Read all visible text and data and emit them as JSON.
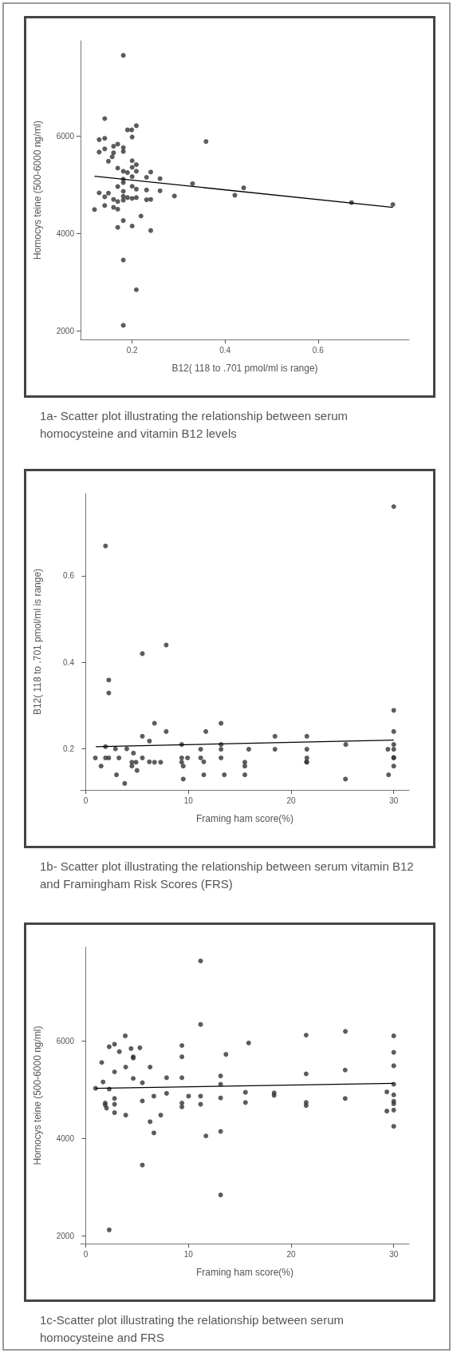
{
  "chart_data": [
    {
      "type": "scatter",
      "title": "1a- Scatter plot illustrating the relationship between serum homocysteine and vitamin B12 levels",
      "xlabel": "B12( 118 to .701 pmol/ml is range)",
      "ylabel": "Homocys teine (500-6000 ng/ml)",
      "xlim": [
        0.089,
        0.796
      ],
      "xticks": [
        0.2,
        0.4,
        0.6
      ],
      "ylim": [
        1830,
        7960
      ],
      "yticks": [
        2000,
        4000,
        6000
      ],
      "marker": "circle",
      "series": [
        {
          "type": "scatter",
          "color": "#333333",
          "x": [
            0.181,
            0.141,
            0.209,
            0.19,
            0.199,
            0.2,
            0.129,
            0.141,
            0.359,
            0.129,
            0.141,
            0.169,
            0.16,
            0.181,
            0.181,
            0.16,
            0.157,
            0.149,
            0.169,
            0.2,
            0.209,
            0.2,
            0.181,
            0.19,
            0.209,
            0.24,
            0.231,
            0.2,
            0.181,
            0.26,
            0.181,
            0.33,
            0.44,
            0.169,
            0.2,
            0.209,
            0.231,
            0.26,
            0.181,
            0.129,
            0.149,
            0.141,
            0.291,
            0.421,
            0.181,
            0.19,
            0.2,
            0.209,
            0.16,
            0.169,
            0.231,
            0.24,
            0.181,
            0.672,
            0.761,
            0.119,
            0.141,
            0.16,
            0.169,
            0.219,
            0.181,
            0.169,
            0.2,
            0.24,
            0.181,
            0.209,
            0.181
          ],
          "values": [
            7660,
            6362,
            6216,
            6130,
            6130,
            5984,
            5930,
            5957,
            5892,
            5676,
            5740,
            5838,
            5795,
            5768,
            5687,
            5660,
            5578,
            5487,
            5346,
            5497,
            5416,
            5362,
            5281,
            5254,
            5281,
            5265,
            5157,
            5173,
            5119,
            5130,
            5049,
            5027,
            4941,
            4968,
            4973,
            4914,
            4897,
            4881,
            4870,
            4838,
            4832,
            4757,
            4773,
            4789,
            4768,
            4741,
            4724,
            4741,
            4703,
            4660,
            4697,
            4703,
            4687,
            4638,
            4600,
            4497,
            4578,
            4541,
            4503,
            4362,
            4270,
            4130,
            4157,
            4065,
            3460,
            2850,
            2120
          ]
        },
        {
          "type": "line",
          "marker": "none",
          "color": "#000000",
          "x": [
            0.119,
            0.761
          ],
          "values": [
            5180,
            4540
          ]
        }
      ]
    },
    {
      "type": "scatter",
      "title": "1b- Scatter plot illustrating the relationship between serum vitamin B12 and Framingham Risk Scores (FRS)",
      "xlabel": "Framing ham score(%)",
      "ylabel": "B12( 118 to .701 pmol/ml is range)",
      "xlim": [
        -0.5,
        31.5
      ],
      "xticks": [
        0,
        10,
        20,
        30
      ],
      "ylim": [
        0.105,
        0.79
      ],
      "yticks": [
        0.2,
        0.4,
        0.6
      ],
      "marker": "circle",
      "series": [
        {
          "type": "scatter",
          "color": "#333333",
          "x": [
            30,
            1.93,
            2.25,
            2.25,
            5.52,
            7.84,
            30,
            6.7,
            13.18,
            5.52,
            11.7,
            7.84,
            6.21,
            18.43,
            21.54,
            30,
            25.33,
            9.35,
            13.18,
            30,
            1.93,
            2.9,
            4,
            11.2,
            13.18,
            15.88,
            18.43,
            21.54,
            29.43,
            30,
            0.94,
            1.93,
            2.25,
            3.24,
            4.65,
            5.52,
            9.35,
            9.92,
            11.2,
            13.18,
            21.54,
            30,
            4.5,
            4.9,
            6.7,
            7.3,
            9.35,
            15.5,
            21.54,
            1.5,
            3,
            3.8,
            4.5,
            5,
            6.2,
            9.5,
            9.5,
            11.5,
            11.5,
            13.5,
            15.5,
            15.5,
            21.5,
            25.3,
            29.5,
            30,
            30
          ],
          "values": [
            0.76,
            0.669,
            0.359,
            0.329,
            0.42,
            0.44,
            0.289,
            0.259,
            0.259,
            0.229,
            0.24,
            0.24,
            0.218,
            0.229,
            0.229,
            0.24,
            0.21,
            0.21,
            0.21,
            0.21,
            0.205,
            0.2,
            0.2,
            0.199,
            0.199,
            0.199,
            0.199,
            0.199,
            0.199,
            0.199,
            0.179,
            0.179,
            0.179,
            0.179,
            0.19,
            0.179,
            0.179,
            0.179,
            0.179,
            0.179,
            0.179,
            0.179,
            0.169,
            0.169,
            0.169,
            0.169,
            0.169,
            0.169,
            0.169,
            0.16,
            0.14,
            0.12,
            0.16,
            0.15,
            0.17,
            0.13,
            0.16,
            0.14,
            0.17,
            0.14,
            0.14,
            0.16,
            0.17,
            0.13,
            0.14,
            0.16,
            0.18
          ]
        },
        {
          "type": "line",
          "marker": "none",
          "color": "#000000",
          "x": [
            0.99,
            30
          ],
          "values": [
            0.205,
            0.22
          ]
        }
      ]
    },
    {
      "type": "scatter",
      "title": "1c-Scatter plot illustrating the relationship between serum homocysteine and FRS",
      "xlabel": "Framing ham score(%)",
      "ylabel": "Homocys teine (500-6000 ng/ml)",
      "xlim": [
        -0.5,
        31.5
      ],
      "xticks": [
        0,
        10,
        20,
        30
      ],
      "ylim": [
        1844,
        7922
      ],
      "yticks": [
        2000,
        4000,
        6000
      ],
      "marker": "circle",
      "series": [
        {
          "type": "scatter",
          "color": "#333333",
          "x": [
            11.19,
            11.19,
            3.85,
            21.47,
            25.29,
            30,
            2.29,
            2.81,
            9.37,
            15.87,
            3.28,
            4.42,
            5.28,
            4.63,
            4.63,
            13.66,
            30,
            1.56,
            9.37,
            30,
            3.9,
            6.27,
            25.27,
            2.81,
            21.47,
            13.14,
            7.88,
            9.37,
            4.63,
            1.69,
            5.52,
            13.14,
            30,
            0.96,
            2.29,
            29.33,
            15.56,
            18.35,
            18.35,
            7.88,
            30,
            6.64,
            10.02,
            11.19,
            13.14,
            2.81,
            25.27,
            5.52,
            30,
            30,
            1.9,
            1.9,
            15.56,
            21.47,
            21.47,
            2.81,
            9.37,
            9.37,
            11.19,
            2.03,
            30,
            29.33,
            2.81,
            3.9,
            7.31,
            6.27,
            30,
            6.64,
            13.14,
            11.71,
            5.52,
            13.14,
            2.29
          ],
          "values": [
            7640,
            6338,
            6104,
            6120,
            6197,
            6104,
            5881,
            5932,
            5907,
            5959,
            5782,
            5844,
            5860,
            5675,
            5650,
            5725,
            5767,
            5559,
            5675,
            5491,
            5465,
            5465,
            5403,
            5366,
            5325,
            5283,
            5247,
            5247,
            5231,
            5158,
            5143,
            5112,
            5112,
            5029,
            5013,
            4956,
            4946,
            4935,
            4883,
            4925,
            4894,
            4868,
            4868,
            4868,
            4831,
            4821,
            4821,
            4769,
            4764,
            4712,
            4727,
            4686,
            4738,
            4738,
            4675,
            4701,
            4727,
            4649,
            4701,
            4623,
            4582,
            4561,
            4530,
            4478,
            4478,
            4343,
            4249,
            4114,
            4145,
            4052,
            3455,
            2842,
            2125
          ]
        },
        {
          "type": "line",
          "marker": "none",
          "color": "#000000",
          "x": [
            0.96,
            30
          ],
          "values": [
            5030,
            5130
          ]
        }
      ]
    }
  ]
}
